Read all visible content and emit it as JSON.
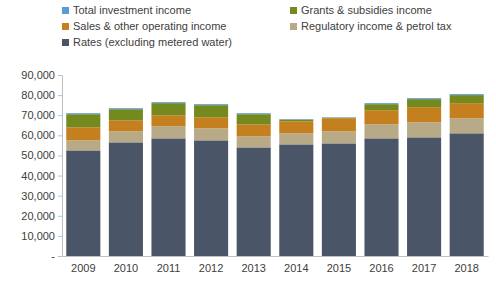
{
  "chart_data": {
    "type": "bar",
    "stacked": true,
    "grid": false,
    "legend": "top",
    "categories": [
      "2009",
      "2010",
      "2011",
      "2012",
      "2013",
      "2014",
      "2015",
      "2016",
      "2017",
      "2018"
    ],
    "series": [
      {
        "name": "Rates (excluding metered water)",
        "color": "#4b5568",
        "values": [
          52500,
          56500,
          58500,
          57500,
          54000,
          55500,
          56000,
          58500,
          59000,
          61000
        ]
      },
      {
        "name": "Regulatory income & petrol tax",
        "color": "#b8aa86",
        "values": [
          5000,
          5500,
          6000,
          6000,
          5500,
          5500,
          6000,
          7000,
          7500,
          7500
        ]
      },
      {
        "name": "Sales & other operating income",
        "color": "#c4801f",
        "values": [
          6500,
          5500,
          5500,
          5500,
          6000,
          6000,
          6500,
          7000,
          7500,
          7500
        ]
      },
      {
        "name": "Grants & subsidies income",
        "color": "#748a1f",
        "values": [
          6500,
          5500,
          6000,
          6000,
          5000,
          800,
          300,
          3000,
          4000,
          4000
        ]
      },
      {
        "name": "Total investment income",
        "color": "#5b9bd5",
        "values": [
          500,
          500,
          500,
          500,
          500,
          300,
          200,
          500,
          500,
          500
        ]
      }
    ],
    "ylim": [
      0,
      90000
    ],
    "yticks": [
      {
        "value": 0,
        "label": "-"
      },
      {
        "value": 10000,
        "label": "10,000"
      },
      {
        "value": 20000,
        "label": "20,000"
      },
      {
        "value": 30000,
        "label": "30,000"
      },
      {
        "value": 40000,
        "label": "40,000"
      },
      {
        "value": 50000,
        "label": "50,000"
      },
      {
        "value": 60000,
        "label": "60,000"
      },
      {
        "value": 70000,
        "label": "70,000"
      },
      {
        "value": 80000,
        "label": "80,000"
      },
      {
        "value": 90000,
        "label": "90,000"
      }
    ]
  }
}
